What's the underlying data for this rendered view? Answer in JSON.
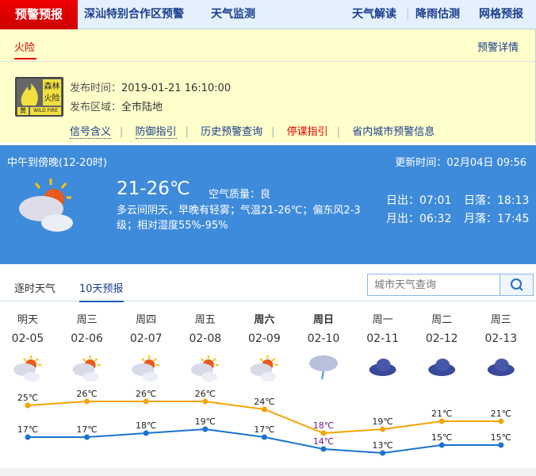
{
  "nav": {
    "active": "预警预报",
    "items": [
      "深汕特别合作区预警",
      "天气监测"
    ],
    "right": [
      "天气解读",
      "降雨估测",
      "网格预报"
    ]
  },
  "warning": {
    "tab": "火险",
    "detail_link": "预警详情",
    "badge_text": "森林火险",
    "badge_level": "黄",
    "badge_en": "WILD FIRE",
    "time_label": "发布时间：",
    "time": "2019-01-21 16:10:00",
    "area_label": "发布区域：",
    "area": "全市陆地",
    "links": [
      "信号含义",
      "防御指引",
      "历史预警查询",
      "停课指引",
      "省内城市预警信息"
    ]
  },
  "now": {
    "period": "中午到傍晚(12-20时)",
    "update_label": "更新时间：",
    "update": "02月04日 09:56",
    "temp": "21-26℃",
    "aq_label": "空气质量：",
    "aq": "良",
    "desc": "多云间阴天，早晚有轻雾；气温21-26℃；偏东风2-3级；相对湿度55%-95%",
    "sunrise": "日出：07:01",
    "sunset": "日落：18:13",
    "moonrise": "月出：06:32",
    "moonset": "月落：17:45",
    "icon": "partly-cloudy-icon"
  },
  "tabs": [
    "逐时天气",
    "10天预报"
  ],
  "search": {
    "placeholder": "城市天气查询"
  },
  "chart_data": {
    "type": "line",
    "categories": [
      "明天",
      "周三",
      "周四",
      "周五",
      "周六",
      "周日",
      "周一",
      "周二",
      "周三"
    ],
    "dates": [
      "02-05",
      "02-06",
      "02-07",
      "02-08",
      "02-09",
      "02-10",
      "02-11",
      "02-12",
      "02-13"
    ],
    "icons": [
      "partly-cloudy",
      "partly-cloudy",
      "partly-cloudy",
      "partly-cloudy",
      "partly-cloudy",
      "rain",
      "overcast",
      "overcast",
      "overcast"
    ],
    "series": [
      {
        "name": "high",
        "color": "#f5a300",
        "values": [
          25,
          26,
          26,
          26,
          24,
          18,
          19,
          21,
          21
        ]
      },
      {
        "name": "low",
        "color": "#1a73d0",
        "values": [
          17,
          17,
          18,
          19,
          17,
          14,
          13,
          15,
          15
        ]
      }
    ],
    "unit": "℃"
  }
}
